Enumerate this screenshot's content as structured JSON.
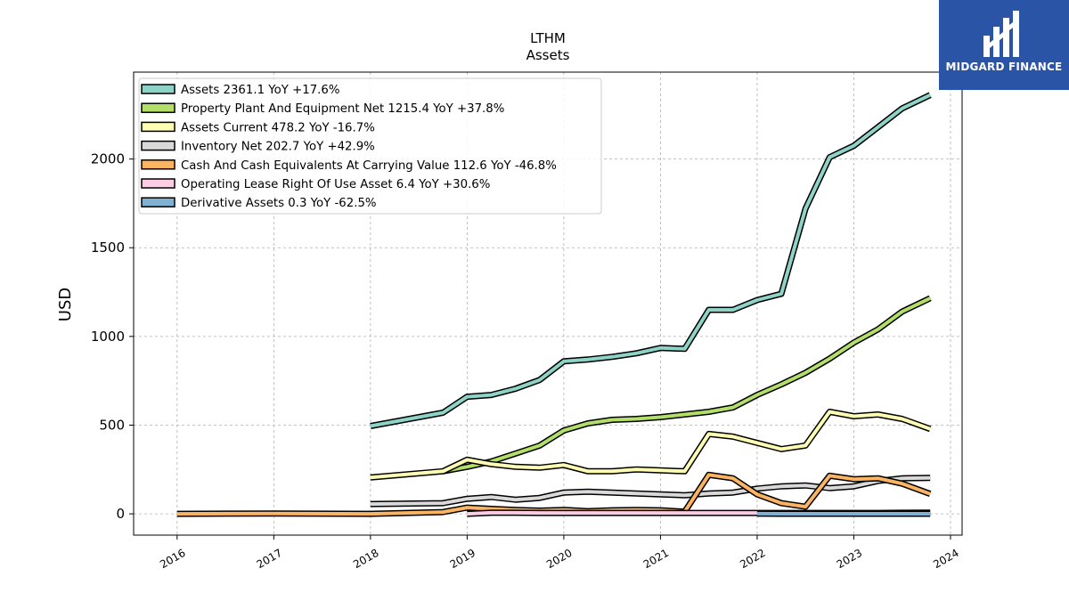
{
  "chart_data": {
    "type": "line",
    "title": "LTHM",
    "subtitle": "Assets",
    "ylabel": "USD",
    "xlabel": "",
    "xlim": [
      2015.55,
      2024.12
    ],
    "ylim": [
      -120,
      2490
    ],
    "x_ticks": [
      2016,
      2017,
      2018,
      2019,
      2020,
      2021,
      2022,
      2023,
      2024
    ],
    "x_tick_labels": [
      "2016",
      "2017",
      "2018",
      "2019",
      "2020",
      "2021",
      "2022",
      "2023",
      "2024"
    ],
    "y_ticks": [
      0,
      500,
      1000,
      1500,
      2000
    ],
    "y_tick_labels": [
      "0",
      "500",
      "1000",
      "1500",
      "2000"
    ],
    "grid": true,
    "legend_position": "top-left",
    "series": [
      {
        "name": "Assets",
        "legend": "Assets  2361.1 YoY +17.6%",
        "color": "#8dd3c7",
        "points": [
          [
            2018.0,
            495
          ],
          [
            2018.75,
            570
          ],
          [
            2019.0,
            660
          ],
          [
            2019.25,
            670
          ],
          [
            2019.5,
            705
          ],
          [
            2019.75,
            755
          ],
          [
            2020.0,
            860
          ],
          [
            2020.25,
            870
          ],
          [
            2020.5,
            885
          ],
          [
            2020.75,
            905
          ],
          [
            2021.0,
            935
          ],
          [
            2021.25,
            930
          ],
          [
            2021.5,
            1150
          ],
          [
            2021.75,
            1150
          ],
          [
            2022.0,
            1205
          ],
          [
            2022.25,
            1240
          ],
          [
            2022.5,
            1720
          ],
          [
            2022.75,
            2010
          ],
          [
            2023.0,
            2075
          ],
          [
            2023.25,
            2180
          ],
          [
            2023.5,
            2285
          ],
          [
            2023.79,
            2361.1
          ]
        ]
      },
      {
        "name": "Property Plant And Equipment Net",
        "legend": "Property Plant And Equipment Net  1215.4 YoY +37.8%",
        "color": "#b3de69",
        "points": [
          [
            2018.75,
            240
          ],
          [
            2019.0,
            265
          ],
          [
            2019.25,
            295
          ],
          [
            2019.5,
            340
          ],
          [
            2019.75,
            385
          ],
          [
            2020.0,
            470
          ],
          [
            2020.25,
            510
          ],
          [
            2020.5,
            530
          ],
          [
            2020.75,
            535
          ],
          [
            2021.0,
            545
          ],
          [
            2021.25,
            560
          ],
          [
            2021.5,
            575
          ],
          [
            2021.75,
            600
          ],
          [
            2022.0,
            670
          ],
          [
            2022.25,
            730
          ],
          [
            2022.5,
            795
          ],
          [
            2022.75,
            875
          ],
          [
            2023.0,
            965
          ],
          [
            2023.25,
            1040
          ],
          [
            2023.5,
            1140
          ],
          [
            2023.79,
            1215.4
          ]
        ]
      },
      {
        "name": "Assets Current",
        "legend": "Assets Current  478.2 YoY -16.7%",
        "color": "#ffffb3",
        "points": [
          [
            2018.0,
            205
          ],
          [
            2018.75,
            240
          ],
          [
            2019.0,
            305
          ],
          [
            2019.25,
            280
          ],
          [
            2019.5,
            265
          ],
          [
            2019.75,
            260
          ],
          [
            2020.0,
            275
          ],
          [
            2020.25,
            240
          ],
          [
            2020.5,
            240
          ],
          [
            2020.75,
            250
          ],
          [
            2021.0,
            245
          ],
          [
            2021.25,
            240
          ],
          [
            2021.5,
            450
          ],
          [
            2021.75,
            435
          ],
          [
            2022.0,
            400
          ],
          [
            2022.25,
            365
          ],
          [
            2022.5,
            385
          ],
          [
            2022.75,
            575
          ],
          [
            2023.0,
            550
          ],
          [
            2023.25,
            560
          ],
          [
            2023.5,
            535
          ],
          [
            2023.79,
            478.2
          ]
        ]
      },
      {
        "name": "Inventory Net",
        "legend": "Inventory Net  202.7 YoY +42.9%",
        "color": "#d9d9d9",
        "points": [
          [
            2018.0,
            55
          ],
          [
            2018.75,
            60
          ],
          [
            2019.0,
            85
          ],
          [
            2019.25,
            95
          ],
          [
            2019.5,
            80
          ],
          [
            2019.75,
            90
          ],
          [
            2020.0,
            120
          ],
          [
            2020.25,
            125
          ],
          [
            2020.5,
            120
          ],
          [
            2020.75,
            115
          ],
          [
            2021.0,
            110
          ],
          [
            2021.25,
            105
          ],
          [
            2021.5,
            115
          ],
          [
            2021.75,
            120
          ],
          [
            2022.0,
            142
          ],
          [
            2022.25,
            155
          ],
          [
            2022.5,
            160
          ],
          [
            2022.75,
            145
          ],
          [
            2023.0,
            155
          ],
          [
            2023.25,
            185
          ],
          [
            2023.5,
            200
          ],
          [
            2023.79,
            202.7
          ]
        ]
      },
      {
        "name": "Cash And Cash Equivalents At Carrying Value",
        "legend": "Cash And Cash Equivalents At Carrying Value  112.6 YoY -46.8%",
        "color": "#fdb462",
        "points": [
          [
            2016.0,
            0
          ],
          [
            2017.0,
            2
          ],
          [
            2018.0,
            0
          ],
          [
            2018.75,
            10
          ],
          [
            2019.0,
            35
          ],
          [
            2019.25,
            28
          ],
          [
            2019.5,
            22
          ],
          [
            2019.75,
            18
          ],
          [
            2020.0,
            22
          ],
          [
            2020.25,
            15
          ],
          [
            2020.5,
            20
          ],
          [
            2020.75,
            22
          ],
          [
            2021.0,
            20
          ],
          [
            2021.25,
            12
          ],
          [
            2021.5,
            220
          ],
          [
            2021.75,
            200
          ],
          [
            2022.0,
            110
          ],
          [
            2022.25,
            60
          ],
          [
            2022.5,
            40
          ],
          [
            2022.75,
            215
          ],
          [
            2023.0,
            195
          ],
          [
            2023.25,
            200
          ],
          [
            2023.5,
            170
          ],
          [
            2023.79,
            112.6
          ]
        ]
      },
      {
        "name": "Operating Lease Right Of Use Asset",
        "legend": "Operating Lease Right Of Use Asset  6.4 YoY +30.6%",
        "color": "#fccde5",
        "points": [
          [
            2019.0,
            0
          ],
          [
            2019.25,
            6
          ],
          [
            2019.5,
            6
          ],
          [
            2019.75,
            5
          ],
          [
            2020.0,
            5
          ],
          [
            2020.25,
            5
          ],
          [
            2020.5,
            5
          ],
          [
            2020.75,
            5
          ],
          [
            2021.0,
            5
          ],
          [
            2021.25,
            5
          ],
          [
            2021.5,
            5
          ],
          [
            2021.75,
            5
          ],
          [
            2022.0,
            5
          ],
          [
            2022.25,
            5
          ],
          [
            2022.5,
            5
          ],
          [
            2022.75,
            5
          ],
          [
            2023.0,
            5
          ],
          [
            2023.25,
            5
          ],
          [
            2023.5,
            6
          ],
          [
            2023.79,
            6.4
          ]
        ]
      },
      {
        "name": "Derivative Assets",
        "legend": "Derivative Assets  0.3 YoY -62.5%",
        "color": "#80b1d3",
        "points": [
          [
            2022.0,
            0.8
          ],
          [
            2022.25,
            0.5
          ],
          [
            2022.5,
            0.5
          ],
          [
            2022.75,
            0.4
          ],
          [
            2023.0,
            0.4
          ],
          [
            2023.25,
            0.3
          ],
          [
            2023.5,
            0.3
          ],
          [
            2023.79,
            0.3
          ]
        ]
      }
    ]
  },
  "logo": {
    "text": "MIDGARD FINANCE",
    "background": "#2a55a7"
  }
}
